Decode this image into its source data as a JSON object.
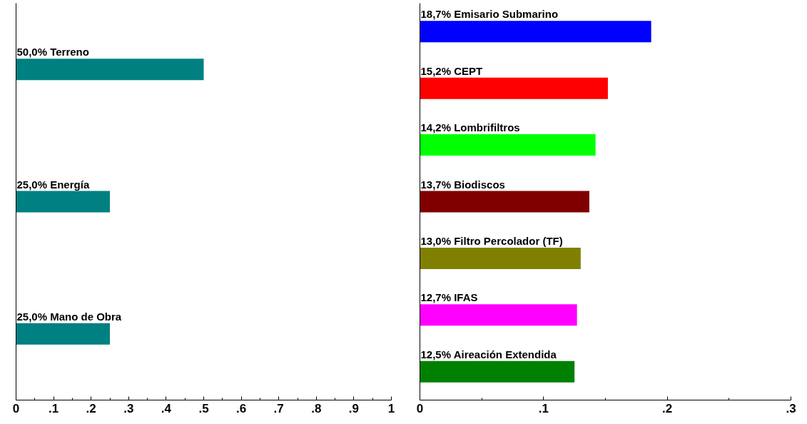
{
  "chart_data": [
    {
      "type": "bar",
      "orientation": "horizontal",
      "categories": [
        "Terreno",
        "Energía",
        "Mano de Obra"
      ],
      "values": [
        0.5,
        0.25,
        0.25
      ],
      "color": "#008080",
      "value_labels": [
        "50,0%",
        "25,0%",
        "25,0%"
      ],
      "xlim": [
        0,
        1
      ],
      "xticks": [
        0,
        {
          "value": 0.1,
          "label": ".1"
        },
        {
          "value": 0.2,
          "label": ".2"
        },
        {
          "value": 0.3,
          "label": ".3"
        },
        {
          "value": 0.4,
          "label": ".4"
        },
        {
          "value": 0.5,
          "label": ".5"
        },
        {
          "value": 0.6,
          "label": ".6"
        },
        {
          "value": 0.7,
          "label": ".7"
        },
        {
          "value": 0.8,
          "label": ".8"
        },
        {
          "value": 0.9,
          "label": ".9"
        },
        1
      ],
      "tick_labels": "x",
      "grid": false
    },
    {
      "type": "bar",
      "orientation": "horizontal",
      "categories": [
        "Emisario Submarino",
        "CEPT",
        "Lombrifiltros",
        "Biodiscos",
        "Filtro Percolador (TF)",
        "IFAS",
        "Aireación Extendida"
      ],
      "values": [
        0.187,
        0.152,
        0.142,
        0.137,
        0.13,
        0.127,
        0.125
      ],
      "colors": [
        "#0000ff",
        "#ff0000",
        "#00ff00",
        "#800000",
        "#808000",
        "#ff00ff",
        "#008000"
      ],
      "value_labels": [
        "18,7%",
        "15,2%",
        "14,2%",
        "13,7%",
        "13,0%",
        "12,7%",
        "12,5%"
      ],
      "xlim": [
        0,
        0.3
      ],
      "xticks": [
        0,
        {
          "value": 0.1,
          "label": ".1"
        },
        {
          "value": 0.2,
          "label": ".2"
        },
        {
          "value": 0.3,
          "label": ".3"
        }
      ],
      "tick_labels": "x",
      "grid": false
    }
  ]
}
